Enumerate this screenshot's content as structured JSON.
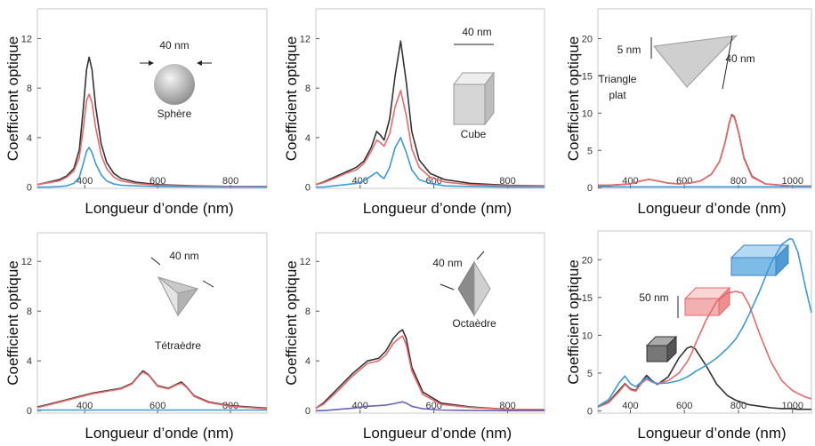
{
  "chart_data": [
    {
      "type": "line",
      "xlabel": "Longueur d’onde (nm)",
      "ylabel": "Coefficient optique",
      "annotations": [
        "40 nm",
        "Sphère"
      ],
      "xlim": [
        270,
        900
      ],
      "ylim": [
        -0.1,
        14.4
      ],
      "xticks": [
        400,
        600,
        800
      ],
      "yticks": [
        0,
        4,
        8,
        12
      ],
      "x": [
        270,
        300,
        330,
        350,
        370,
        385,
        395,
        405,
        412,
        420,
        430,
        445,
        460,
        480,
        500,
        540,
        600,
        700,
        800,
        900
      ],
      "series": [
        {
          "color": "#333333",
          "values": [
            0.2,
            0.4,
            0.6,
            0.9,
            1.5,
            3,
            6,
            9.5,
            10.5,
            9.5,
            6.5,
            3.5,
            2.0,
            1.1,
            0.7,
            0.4,
            0.2,
            0.1,
            0.05,
            0.05
          ]
        },
        {
          "color": "#e8696b",
          "values": [
            0.2,
            0.35,
            0.5,
            0.8,
            1.3,
            2.4,
            4.5,
            7,
            7.5,
            6.8,
            4.8,
            2.6,
            1.5,
            0.8,
            0.5,
            0.3,
            0.15,
            0.08,
            0.05,
            0.05
          ]
        },
        {
          "color": "#3b9ad8",
          "values": [
            0,
            0,
            0.05,
            0.1,
            0.3,
            0.8,
            1.8,
            2.9,
            3.2,
            2.8,
            1.9,
            1.0,
            0.5,
            0.25,
            0.15,
            0.1,
            0.05,
            0.02,
            0,
            0
          ]
        }
      ]
    },
    {
      "type": "line",
      "xlabel": "Longueur d’onde (nm)",
      "ylabel": "Coefficient optique",
      "annotations": [
        "40 nm",
        "Cube"
      ],
      "xlim": [
        280,
        900
      ],
      "ylim": [
        -0.1,
        14.4
      ],
      "xticks": [
        400,
        600,
        800
      ],
      "yticks": [
        0,
        4,
        8,
        12
      ],
      "x": [
        280,
        300,
        330,
        360,
        390,
        410,
        430,
        445,
        455,
        465,
        480,
        495,
        510,
        525,
        540,
        560,
        590,
        630,
        700,
        800,
        900
      ],
      "series": [
        {
          "color": "#333333",
          "values": [
            0.2,
            0.4,
            0.8,
            1.2,
            1.6,
            2.1,
            3.2,
            4.5,
            4.2,
            3.8,
            5.5,
            9,
            11.8,
            8.5,
            4.5,
            2.2,
            1.1,
            0.6,
            0.3,
            0.15,
            0.1
          ]
        },
        {
          "color": "#e8696b",
          "values": [
            0.2,
            0.35,
            0.7,
            1.1,
            1.4,
            1.9,
            2.9,
            3.8,
            3.6,
            3.3,
            4.3,
            6.5,
            7.8,
            5.8,
            3.1,
            1.6,
            0.8,
            0.4,
            0.2,
            0.1,
            0.1
          ]
        },
        {
          "color": "#3b9ad8",
          "values": [
            0,
            0,
            0.1,
            0.2,
            0.3,
            0.5,
            0.9,
            1.2,
            0.9,
            0.7,
            1.6,
            3.2,
            4.0,
            2.8,
            1.4,
            0.6,
            0.3,
            0.1,
            0.05,
            0,
            0
          ]
        }
      ]
    },
    {
      "type": "line",
      "xlabel": "Longueur d’onde (nm)",
      "ylabel": "Coefficient optique",
      "annotations": [
        "5 nm",
        "40 nm",
        "Triangle",
        "plat"
      ],
      "xlim": [
        280,
        1070
      ],
      "ylim": [
        -0.1,
        24
      ],
      "xticks": [
        400,
        600,
        800,
        1000
      ],
      "yticks": [
        0,
        5,
        10,
        15,
        20
      ],
      "x": [
        280,
        320,
        360,
        400,
        440,
        470,
        500,
        540,
        580,
        620,
        660,
        700,
        730,
        750,
        765,
        775,
        785,
        800,
        820,
        850,
        900,
        1000,
        1070
      ],
      "series": [
        {
          "color": "#333333",
          "values": [
            0.3,
            0.3,
            0.4,
            0.5,
            0.9,
            1.1,
            0.9,
            0.6,
            0.5,
            0.6,
            0.9,
            1.8,
            3.5,
            6,
            8.5,
            9.8,
            9.5,
            7.5,
            4,
            1.5,
            0.5,
            0.2,
            0.2
          ]
        },
        {
          "color": "#e8696b",
          "values": [
            0.3,
            0.3,
            0.4,
            0.5,
            0.9,
            1.1,
            0.9,
            0.6,
            0.5,
            0.6,
            0.9,
            1.8,
            3.5,
            6,
            8.6,
            9.7,
            9.4,
            7.4,
            3.9,
            1.4,
            0.5,
            0.2,
            0.2
          ]
        },
        {
          "color": "#3b9ad8",
          "values": [
            0.1,
            0.1,
            0.1,
            0.1,
            0.1,
            0.1,
            0.1,
            0.1,
            0.1,
            0.1,
            0.1,
            0.1,
            0.1,
            0.1,
            0.1,
            0.1,
            0.1,
            0.1,
            0.1,
            0.1,
            0.1,
            0.1,
            0.1
          ]
        }
      ]
    },
    {
      "type": "line",
      "xlabel": "Longueur d’onde (nm)",
      "ylabel": "Coefficient optique",
      "annotations": [
        "40 nm",
        "Tétraèdre"
      ],
      "xlim": [
        270,
        900
      ],
      "ylim": [
        -0.2,
        14.3
      ],
      "xticks": [
        400,
        600,
        800
      ],
      "yticks": [
        0,
        4,
        8,
        12
      ],
      "x": [
        270,
        300,
        340,
        380,
        420,
        460,
        500,
        530,
        550,
        560,
        575,
        600,
        630,
        650,
        665,
        680,
        700,
        740,
        800,
        850,
        900
      ],
      "series": [
        {
          "color": "#333333",
          "values": [
            0.3,
            0.5,
            0.8,
            1.1,
            1.4,
            1.6,
            1.8,
            2.2,
            2.9,
            3.2,
            2.9,
            2.0,
            1.8,
            2.1,
            2.3,
            1.9,
            1.2,
            0.7,
            0.4,
            0.3,
            0.2
          ]
        },
        {
          "color": "#e8696b",
          "values": [
            0.25,
            0.45,
            0.75,
            1.05,
            1.35,
            1.55,
            1.75,
            2.15,
            2.85,
            3.1,
            2.85,
            1.95,
            1.75,
            2.05,
            2.2,
            1.85,
            1.15,
            0.65,
            0.35,
            0.25,
            0.15
          ]
        },
        {
          "color": "#3b9ad8",
          "values": [
            0.05,
            0.05,
            0.05,
            0.05,
            0.05,
            0.05,
            0.05,
            0.05,
            0.05,
            0.05,
            0.05,
            0.05,
            0.05,
            0.05,
            0.05,
            0.05,
            0.05,
            0.05,
            0.05,
            0.05,
            0.05
          ]
        }
      ]
    },
    {
      "type": "line",
      "xlabel": "Longueur d’onde (nm)",
      "ylabel": "Coefficient optique",
      "annotations": [
        "40 nm",
        "Octaèdre"
      ],
      "xlim": [
        280,
        900
      ],
      "ylim": [
        -0.2,
        14.3
      ],
      "xticks": [
        400,
        600,
        800
      ],
      "yticks": [
        0,
        4,
        8,
        12
      ],
      "x": [
        280,
        300,
        340,
        380,
        420,
        450,
        470,
        490,
        505,
        515,
        525,
        540,
        570,
        620,
        700,
        800,
        900
      ],
      "series": [
        {
          "color": "#333333",
          "values": [
            0.2,
            0.6,
            1.8,
            3,
            4,
            4.2,
            4.8,
            5.8,
            6.3,
            6.5,
            5.8,
            3.5,
            1.5,
            0.6,
            0.3,
            0.1,
            0.1
          ]
        },
        {
          "color": "#e8696b",
          "values": [
            0.2,
            0.5,
            1.6,
            2.8,
            3.8,
            4,
            4.5,
            5.4,
            5.8,
            6.0,
            5.3,
            3.2,
            1.3,
            0.5,
            0.25,
            0.1,
            0.1
          ]
        },
        {
          "color": "#6a62b5",
          "values": [
            0,
            0,
            0.1,
            0.2,
            0.35,
            0.4,
            0.45,
            0.55,
            0.65,
            0.7,
            0.6,
            0.35,
            0.15,
            0.05,
            0.02,
            0,
            0
          ]
        }
      ]
    },
    {
      "type": "line",
      "xlabel": "Longueur d’onde (nm)",
      "ylabel": "Coefficient optique",
      "annotations": [
        "50 nm"
      ],
      "xlim": [
        280,
        1070
      ],
      "ylim": [
        -0.3,
        23.8
      ],
      "xticks": [
        400,
        600,
        800,
        1000
      ],
      "yticks": [
        0,
        5,
        10,
        15,
        20
      ],
      "x": [
        280,
        320,
        360,
        380,
        400,
        420,
        440,
        460,
        480,
        500,
        540,
        580,
        610,
        625,
        640,
        680,
        720,
        760,
        790,
        815,
        840,
        880,
        920,
        960,
        990,
        1000,
        1020,
        1050,
        1070
      ],
      "series": [
        {
          "color": "#333333",
          "values": [
            0.5,
            1.2,
            2.8,
            3.6,
            2.9,
            2.7,
            3.8,
            4.7,
            4.0,
            3.5,
            4.5,
            7,
            8.3,
            8.5,
            8.2,
            6,
            3.5,
            2,
            1.4,
            1.1,
            0.8,
            0.6,
            0.4,
            0.3,
            0.3,
            0.3,
            0.2,
            0.2,
            0.2
          ]
        },
        {
          "color": "#e8696b",
          "values": [
            0.5,
            1.1,
            2.6,
            3.5,
            2.8,
            2.6,
            3.6,
            4.2,
            3.8,
            3.6,
            4.0,
            5.0,
            6.5,
            7.5,
            8.8,
            12,
            14.5,
            15.6,
            15.8,
            15.6,
            14,
            10,
            6.5,
            4,
            3,
            2.7,
            2.3,
            1.8,
            1.6
          ]
        },
        {
          "color": "#3b9ad8",
          "values": [
            0.6,
            1.5,
            3.8,
            4.6,
            3.6,
            3.2,
            3.8,
            4.4,
            3.9,
            3.6,
            3.7,
            4.0,
            4.5,
            4.8,
            5.2,
            6,
            7,
            8.3,
            9.5,
            11,
            12.8,
            16,
            19.5,
            22,
            22.8,
            22.7,
            21,
            16,
            13
          ]
        }
      ]
    }
  ]
}
